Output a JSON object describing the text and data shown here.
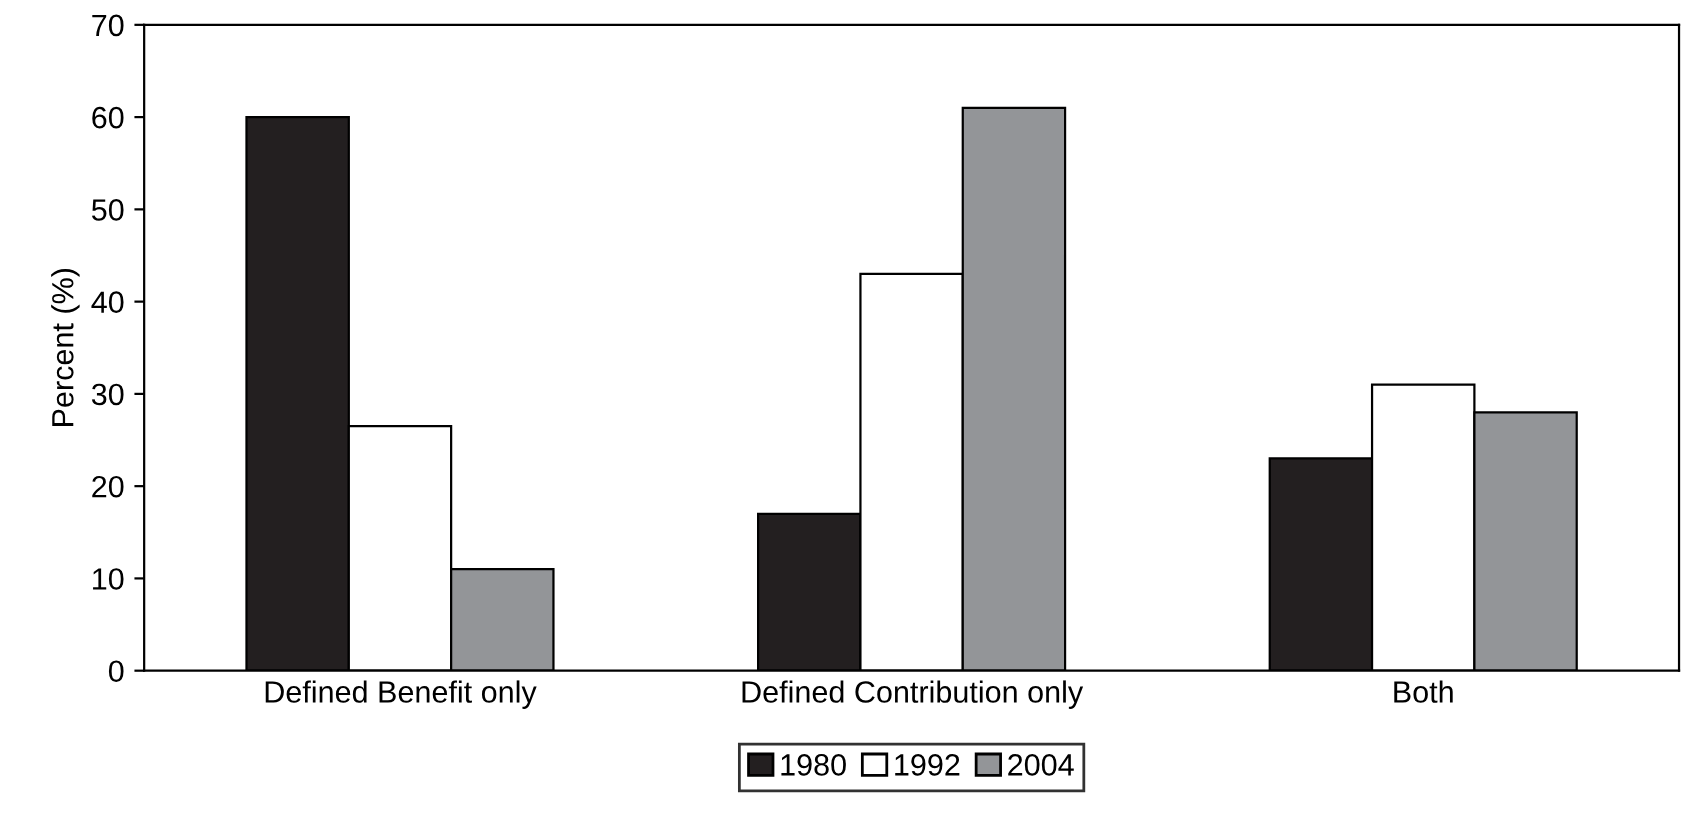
{
  "chart_data": {
    "type": "bar",
    "ylabel": "Percent (%)",
    "categories": [
      "Defined Benefit only",
      "Defined Contribution only",
      "Both"
    ],
    "series": [
      {
        "name": "1980",
        "color": "#231f20",
        "values": [
          60,
          17,
          23
        ]
      },
      {
        "name": "1992",
        "color": "#ffffff",
        "values": [
          26.5,
          43,
          31
        ]
      },
      {
        "name": "2004",
        "color": "#939598",
        "values": [
          11,
          61,
          28
        ]
      }
    ],
    "ylim": [
      0,
      70
    ],
    "yticks": [
      0,
      10,
      20,
      30,
      40,
      50,
      60,
      70
    ],
    "grid": false,
    "legend": "bottom"
  }
}
